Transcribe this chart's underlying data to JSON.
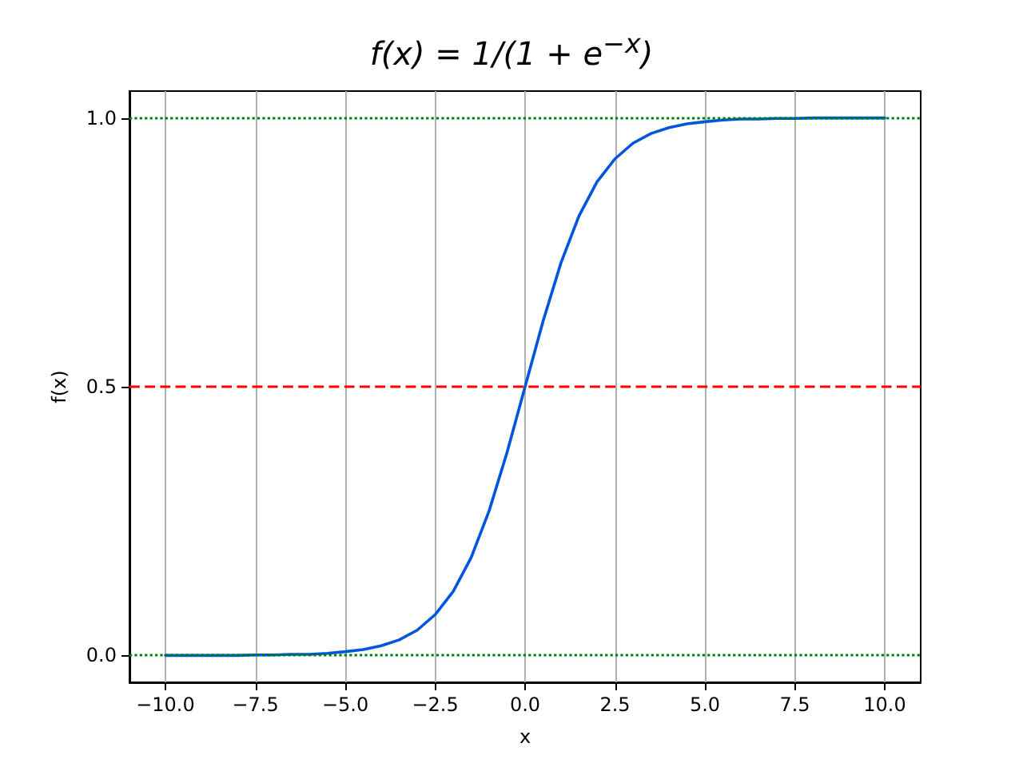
{
  "chart_data": {
    "type": "line",
    "title": "f(x) = 1/(1 + e$^{−x}$)",
    "xlabel": "x",
    "ylabel": "f(x)",
    "x": [
      -10,
      -9.5,
      -9,
      -8.5,
      -8,
      -7.5,
      -7,
      -6.5,
      -6,
      -5.5,
      -5,
      -4.5,
      -4,
      -3.5,
      -3,
      -2.5,
      -2,
      -1.5,
      -1,
      -0.5,
      0,
      0.5,
      1,
      1.5,
      2,
      2.5,
      3,
      3.5,
      4,
      4.5,
      5,
      5.5,
      6,
      6.5,
      7,
      7.5,
      8,
      8.5,
      9,
      9.5,
      10
    ],
    "series": [
      {
        "color": "#0055dd",
        "values": [
          0.0,
          0.0,
          0.0,
          0.0,
          0.0,
          0.001,
          0.001,
          0.002,
          0.002,
          0.004,
          0.007,
          0.011,
          0.018,
          0.029,
          0.047,
          0.076,
          0.119,
          0.182,
          0.269,
          0.378,
          0.5,
          0.622,
          0.731,
          0.818,
          0.881,
          0.924,
          0.953,
          0.971,
          0.982,
          0.989,
          0.993,
          0.996,
          0.998,
          0.998,
          0.999,
          0.999,
          1.0,
          1.0,
          1.0,
          1.0,
          1.0
        ]
      }
    ],
    "xlim": [
      -11,
      11
    ],
    "xticks": [
      {
        "value": -10,
        "label": "−10.0"
      },
      {
        "value": -7.5,
        "label": "−7.5"
      },
      {
        "value": -5,
        "label": "−5.0"
      },
      {
        "value": -2.5,
        "label": "−2.5"
      },
      {
        "value": 0,
        "label": "0.0"
      },
      {
        "value": 2.5,
        "label": "2.5"
      },
      {
        "value": 5,
        "label": "5.0"
      },
      {
        "value": 7.5,
        "label": "7.5"
      },
      {
        "value": 10,
        "label": "10.0"
      }
    ],
    "ylim": [
      -0.05,
      1.05
    ],
    "yticks": [
      {
        "value": 0,
        "label": "0.0"
      },
      {
        "value": 0.5,
        "label": "0.5"
      },
      {
        "value": 1,
        "label": "1.0"
      }
    ],
    "grid": "x",
    "marker": "none",
    "line_style": "solid",
    "ref_lines": [
      {
        "axis": "y",
        "value": 0.5,
        "color": "#ff0000",
        "line_style": "dashed"
      },
      {
        "axis": "y",
        "value": 0,
        "color": "#008000",
        "line_style": "dotted"
      },
      {
        "axis": "y",
        "value": 1,
        "color": "#008000",
        "line_style": "dotted"
      }
    ]
  }
}
